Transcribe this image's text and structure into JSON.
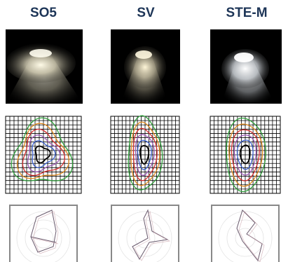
{
  "columns": [
    {
      "label": "SO5"
    },
    {
      "label": "SV"
    },
    {
      "label": "STE-M"
    }
  ]
}
